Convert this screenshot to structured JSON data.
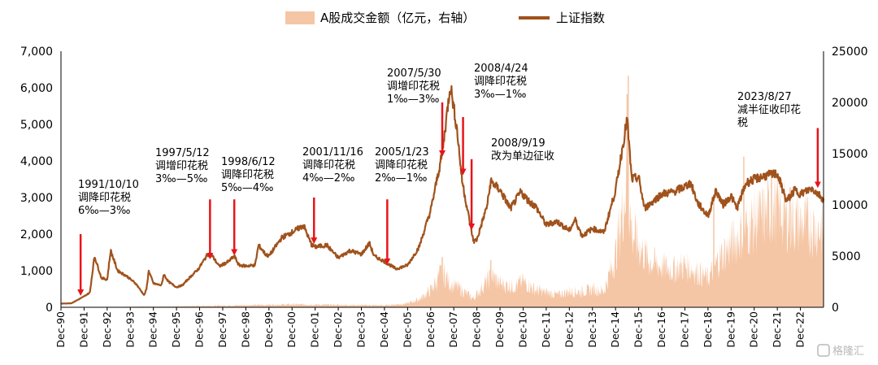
{
  "chart_data": {
    "type": "line",
    "legend": {
      "placement": "top",
      "entries": [
        {
          "name": "A股成交金额（亿元，右轴）",
          "kind": "area",
          "color": "#f5c6a5"
        },
        {
          "name": "上证指数",
          "kind": "line",
          "color": "#a0521c"
        }
      ]
    },
    "left_axis": {
      "ylim": [
        0,
        7000
      ],
      "ticks": [
        "0",
        "1,000",
        "2,000",
        "3,000",
        "4,000",
        "5,000",
        "6,000",
        "7,000"
      ]
    },
    "right_axis": {
      "ylim": [
        0,
        25000
      ],
      "ticks": [
        "0",
        "5000",
        "10000",
        "15000",
        "20000",
        "25000"
      ]
    },
    "x_tick_labels": [
      "Dec-90",
      "Dec-91",
      "Dec-92",
      "Dec-93",
      "Dec-94",
      "Dec-95",
      "Dec-96",
      "Dec-97",
      "Dec-98",
      "Dec-99",
      "Dec-00",
      "Dec-01",
      "Dec-02",
      "Dec-03",
      "Dec-04",
      "Dec-05",
      "Dec-06",
      "Dec-07",
      "Dec-08",
      "Dec-09",
      "Dec-10",
      "Dec-11",
      "Dec-12",
      "Dec-13",
      "Dec-14",
      "Dec-15",
      "Dec-16",
      "Dec-17",
      "Dec-18",
      "Dec-19",
      "Dec-20",
      "Dec-21",
      "Dec-22"
    ],
    "series": [
      {
        "name": "上证指数",
        "axis": "left",
        "points": [
          [
            1990.95,
            100
          ],
          [
            1991.4,
            110
          ],
          [
            1991.9,
            280
          ],
          [
            1992.2,
            400
          ],
          [
            1992.4,
            1400
          ],
          [
            1992.7,
            800
          ],
          [
            1992.95,
            760
          ],
          [
            1993.1,
            1550
          ],
          [
            1993.4,
            1000
          ],
          [
            1993.8,
            850
          ],
          [
            1994.2,
            640
          ],
          [
            1994.55,
            330
          ],
          [
            1994.65,
            500
          ],
          [
            1994.75,
            1000
          ],
          [
            1994.95,
            650
          ],
          [
            1995.3,
            600
          ],
          [
            1995.4,
            900
          ],
          [
            1995.6,
            700
          ],
          [
            1995.95,
            550
          ],
          [
            1996.2,
            600
          ],
          [
            1996.5,
            800
          ],
          [
            1996.9,
            1050
          ],
          [
            1997.3,
            1450
          ],
          [
            1997.5,
            1400
          ],
          [
            1997.8,
            1120
          ],
          [
            1998.2,
            1250
          ],
          [
            1998.45,
            1400
          ],
          [
            1998.65,
            1150
          ],
          [
            1998.95,
            1130
          ],
          [
            1999.35,
            1150
          ],
          [
            1999.5,
            1700
          ],
          [
            1999.8,
            1450
          ],
          [
            1999.95,
            1400
          ],
          [
            2000.5,
            1900
          ],
          [
            2000.95,
            2050
          ],
          [
            2001.45,
            2240
          ],
          [
            2001.6,
            2000
          ],
          [
            2001.8,
            1700
          ],
          [
            2001.95,
            1650
          ],
          [
            2002.45,
            1700
          ],
          [
            2002.95,
            1350
          ],
          [
            2003.45,
            1550
          ],
          [
            2003.95,
            1450
          ],
          [
            2004.3,
            1750
          ],
          [
            2004.5,
            1400
          ],
          [
            2004.95,
            1250
          ],
          [
            2005.45,
            1050
          ],
          [
            2005.95,
            1150
          ],
          [
            2006.45,
            1650
          ],
          [
            2006.95,
            2650
          ],
          [
            2007.45,
            4200
          ],
          [
            2007.8,
            6100
          ],
          [
            2008.1,
            4800
          ],
          [
            2008.3,
            3500
          ],
          [
            2008.5,
            2800
          ],
          [
            2008.8,
            1800
          ],
          [
            2008.95,
            1850
          ],
          [
            2009.4,
            2800
          ],
          [
            2009.55,
            3450
          ],
          [
            2009.95,
            3200
          ],
          [
            2010.4,
            2700
          ],
          [
            2010.85,
            3150
          ],
          [
            2011.2,
            2900
          ],
          [
            2011.5,
            2750
          ],
          [
            2011.95,
            2250
          ],
          [
            2012.4,
            2350
          ],
          [
            2012.95,
            2100
          ],
          [
            2013.2,
            2400
          ],
          [
            2013.5,
            1950
          ],
          [
            2013.95,
            2150
          ],
          [
            2014.45,
            2050
          ],
          [
            2014.95,
            3200
          ],
          [
            2015.45,
            5150
          ],
          [
            2015.65,
            3500
          ],
          [
            2015.95,
            3550
          ],
          [
            2016.2,
            2700
          ],
          [
            2016.95,
            3100
          ],
          [
            2017.45,
            3150
          ],
          [
            2017.95,
            3300
          ],
          [
            2018.2,
            3400
          ],
          [
            2018.5,
            2850
          ],
          [
            2018.95,
            2500
          ],
          [
            2019.3,
            3200
          ],
          [
            2019.6,
            2800
          ],
          [
            2019.95,
            3050
          ],
          [
            2020.2,
            2700
          ],
          [
            2020.6,
            3400
          ],
          [
            2020.95,
            3500
          ],
          [
            2021.45,
            3600
          ],
          [
            2021.95,
            3650
          ],
          [
            2022.35,
            2900
          ],
          [
            2022.7,
            3200
          ],
          [
            2022.95,
            3100
          ],
          [
            2023.45,
            3250
          ],
          [
            2023.8,
            3050
          ],
          [
            2023.95,
            2950
          ]
        ]
      },
      {
        "name": "A股成交金额（亿元，右轴）",
        "axis": "right",
        "points": [
          [
            1990.95,
            0
          ],
          [
            1995.95,
            100
          ],
          [
            2000.95,
            300
          ],
          [
            2004.95,
            200
          ],
          [
            2005.95,
            400
          ],
          [
            2006.5,
            900
          ],
          [
            2006.95,
            1800
          ],
          [
            2007.45,
            3800
          ],
          [
            2007.8,
            2500
          ],
          [
            2008.2,
            2000
          ],
          [
            2008.8,
            900
          ],
          [
            2009.2,
            2200
          ],
          [
            2009.6,
            3300
          ],
          [
            2009.95,
            2500
          ],
          [
            2010.5,
            2200
          ],
          [
            2010.95,
            2700
          ],
          [
            2011.5,
            1800
          ],
          [
            2012.45,
            1300
          ],
          [
            2012.95,
            1700
          ],
          [
            2013.45,
            1600
          ],
          [
            2013.95,
            1900
          ],
          [
            2014.45,
            1700
          ],
          [
            2014.95,
            5500
          ],
          [
            2015.45,
            13500
          ],
          [
            2015.65,
            8000
          ],
          [
            2015.95,
            6500
          ],
          [
            2016.45,
            4800
          ],
          [
            2016.95,
            4300
          ],
          [
            2017.45,
            4000
          ],
          [
            2017.95,
            4400
          ],
          [
            2018.45,
            3800
          ],
          [
            2018.95,
            3000
          ],
          [
            2019.45,
            5200
          ],
          [
            2019.95,
            6500
          ],
          [
            2020.45,
            8000
          ],
          [
            2020.95,
            9000
          ],
          [
            2021.45,
            9800
          ],
          [
            2021.95,
            10500
          ],
          [
            2022.45,
            9200
          ],
          [
            2022.95,
            8800
          ],
          [
            2023.45,
            8400
          ],
          [
            2023.95,
            8100
          ]
        ],
        "spikes": [
          [
            2007.45,
            4900
          ],
          [
            2009.55,
            4600
          ],
          [
            2015.45,
            20800
          ],
          [
            2015.5,
            22600
          ],
          [
            2019.2,
            10400
          ],
          [
            2020.5,
            14700
          ],
          [
            2021.7,
            12900
          ],
          [
            2022.5,
            11700
          ]
        ]
      }
    ],
    "annotations": [
      {
        "date": "1991/10/10",
        "lines": [
          "1991/10/10",
          "调降印花税",
          "6‰—3‰"
        ],
        "x": 1991.8,
        "arrow_from": 2000,
        "arrow_to": 400
      },
      {
        "date": "1997/5/12",
        "lines": [
          "1997/5/12",
          "调增印花税",
          "3‰—5‰"
        ],
        "x": 1997.4,
        "arrow_from": 2950,
        "arrow_to": 1400
      },
      {
        "date": "1998/6/12",
        "lines": [
          "1998/6/12",
          "调降印花税",
          "5‰—4‰"
        ],
        "x": 1998.45,
        "arrow_from": 2950,
        "arrow_to": 1500
      },
      {
        "date": "2001/11/16",
        "lines": [
          "2001/11/16",
          "调降印花税",
          "4‰—2‰"
        ],
        "x": 2001.9,
        "arrow_from": 3000,
        "arrow_to": 1820
      },
      {
        "date": "2005/1/23",
        "lines": [
          "2005/1/23",
          "调降印花税",
          "2‰—1‰"
        ],
        "x": 2005.07,
        "arrow_from": 2950,
        "arrow_to": 1250
      },
      {
        "date": "2007/5/30",
        "lines": [
          "2007/5/30",
          "调增印花税",
          "1‰—3‰"
        ],
        "x": 2007.45,
        "arrow_from": 5600,
        "arrow_to": 4200
      },
      {
        "date": "2008/4/24",
        "lines": [
          "2008/4/24",
          "调降印花税",
          "3‰—1‰"
        ],
        "x": 2008.35,
        "arrow_from": 5200,
        "arrow_to": 3700
      },
      {
        "date": "2008/9/19",
        "lines": [
          "2008/9/19",
          "改为单边征收"
        ],
        "x": 2008.72,
        "arrow_from": 4050,
        "arrow_to": 2200
      },
      {
        "date": "2023/8/27",
        "lines": [
          "2023/8/27",
          "减半征收印花",
          "税"
        ],
        "x": 2023.7,
        "arrow_from": 4900,
        "arrow_to": 3350
      }
    ],
    "grid": false
  },
  "watermark": {
    "text": "格隆汇"
  }
}
